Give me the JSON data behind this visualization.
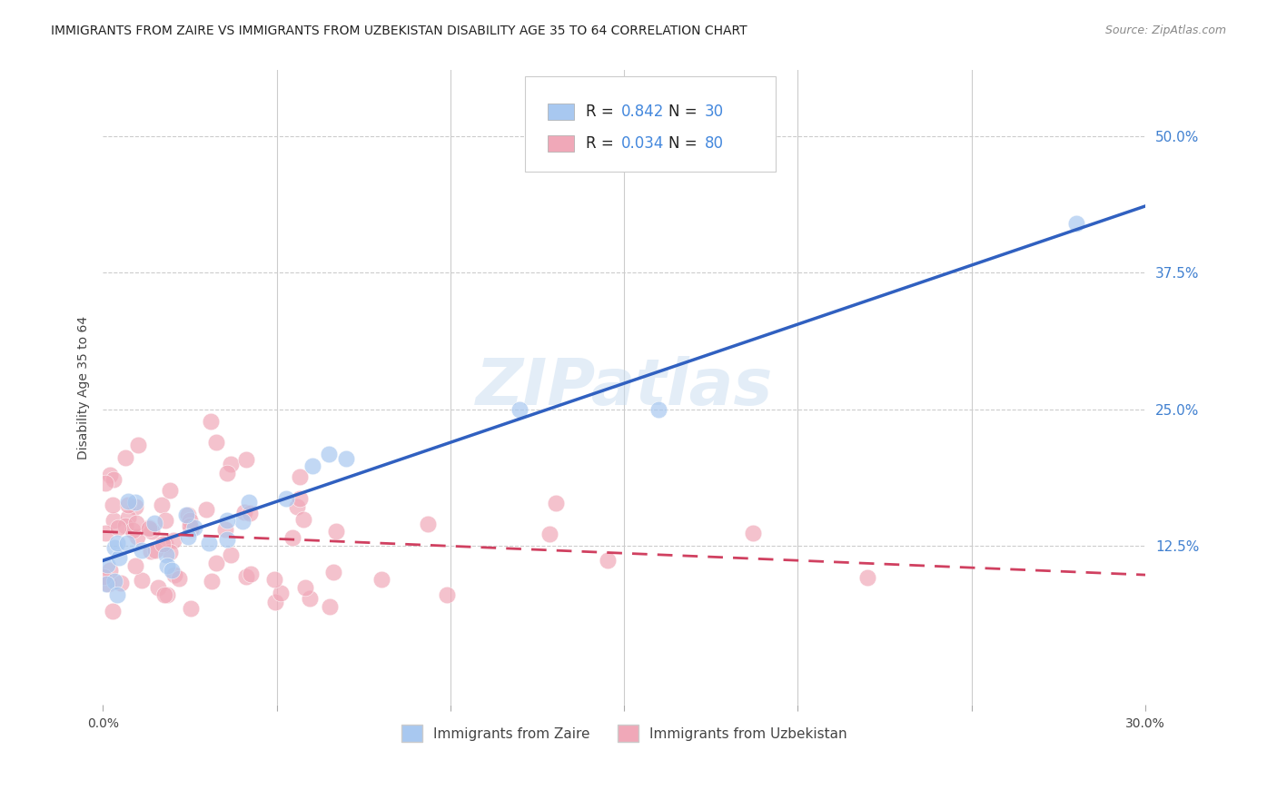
{
  "title": "IMMIGRANTS FROM ZAIRE VS IMMIGRANTS FROM UZBEKISTAN DISABILITY AGE 35 TO 64 CORRELATION CHART",
  "source": "Source: ZipAtlas.com",
  "ylabel": "Disability Age 35 to 64",
  "xlabel": "",
  "xlim": [
    0.0,
    0.3
  ],
  "ylim": [
    -0.02,
    0.55
  ],
  "xticks": [
    0.0,
    0.05,
    0.1,
    0.15,
    0.2,
    0.25,
    0.3
  ],
  "xtick_labels": [
    "0.0%",
    "",
    "",
    "",
    "",
    "",
    "30.0%"
  ],
  "ytick_labels_right": [
    "50.0%",
    "37.5%",
    "25.0%",
    "12.5%"
  ],
  "ytick_positions_right": [
    0.5,
    0.375,
    0.25,
    0.125
  ],
  "zaire_R": 0.842,
  "zaire_N": 30,
  "uzbekistan_R": 0.034,
  "uzbekistan_N": 80,
  "zaire_color": "#a8c8f0",
  "uzbekistan_color": "#f0a8b8",
  "zaire_line_color": "#3060c0",
  "uzbekistan_line_color": "#d04060",
  "legend_labels": [
    "Immigrants from Zaire",
    "Immigrants from Uzbekistan"
  ],
  "watermark": "ZIPatlas",
  "background_color": "#ffffff",
  "grid_color": "#cccccc",
  "title_fontsize": 11,
  "axis_label_fontsize": 10
}
